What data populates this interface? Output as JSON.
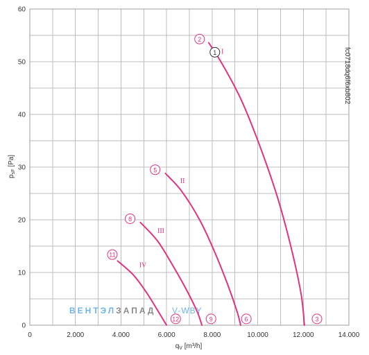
{
  "chart_data": {
    "type": "line",
    "xlabel_main": "q",
    "xlabel_sub": "V",
    "xlabel_unit": " [m³/h]",
    "ylabel_main": "p",
    "ylabel_sub": "sF",
    "ylabel_unit": " [Pa]",
    "xlim": [
      0,
      14000
    ],
    "ylim": [
      0,
      60
    ],
    "x_ticks": [
      {
        "value": 0,
        "label": "0"
      },
      {
        "value": 2000,
        "label": "2.000"
      },
      {
        "value": 4000,
        "label": "4.000"
      },
      {
        "value": 6000,
        "label": "6.000"
      },
      {
        "value": 8000,
        "label": "8.000"
      },
      {
        "value": 10000,
        "label": "10.000"
      },
      {
        "value": 12000,
        "label": "12.000"
      },
      {
        "value": 14000,
        "label": "14.000"
      }
    ],
    "y_ticks": [
      {
        "value": 0,
        "label": "0"
      },
      {
        "value": 10,
        "label": "10"
      },
      {
        "value": 20,
        "label": "20"
      },
      {
        "value": 30,
        "label": "30"
      },
      {
        "value": 40,
        "label": "40"
      },
      {
        "value": 50,
        "label": "50"
      },
      {
        "value": 60,
        "label": "60"
      }
    ],
    "x_minor_step": 1000,
    "y_minor_step": 5,
    "grid": true,
    "curve_color": "#e0337f",
    "series": [
      {
        "name": "I",
        "points": [
          [
            7850,
            53.6
          ],
          [
            8450,
            49.5
          ],
          [
            9250,
            43.0
          ],
          [
            10050,
            34.5
          ],
          [
            10850,
            24.5
          ],
          [
            11450,
            15.0
          ],
          [
            11900,
            6.0
          ],
          [
            12050,
            0
          ]
        ]
      },
      {
        "name": "II",
        "points": [
          [
            5950,
            28.8
          ],
          [
            6650,
            25.5
          ],
          [
            7450,
            20.0
          ],
          [
            8100,
            14.0
          ],
          [
            8700,
            7.5
          ],
          [
            9100,
            2.5
          ],
          [
            9250,
            0
          ]
        ]
      },
      {
        "name": "III",
        "points": [
          [
            4850,
            19.5
          ],
          [
            5600,
            16.0
          ],
          [
            6250,
            11.5
          ],
          [
            6900,
            6.5
          ],
          [
            7350,
            2.5
          ],
          [
            7550,
            0
          ]
        ]
      },
      {
        "name": "IV",
        "points": [
          [
            3850,
            12.2
          ],
          [
            4550,
            9.5
          ],
          [
            5150,
            6.0
          ],
          [
            5650,
            2.5
          ],
          [
            6000,
            0
          ]
        ]
      }
    ],
    "series_labels": [
      {
        "text": "I",
        "x": 8400,
        "y": 51.5
      },
      {
        "text": "II",
        "x": 6600,
        "y": 27.0
      },
      {
        "text": "III",
        "x": 5600,
        "y": 17.5
      },
      {
        "text": "IV",
        "x": 4800,
        "y": 11.0
      }
    ],
    "markers": [
      {
        "label": "1",
        "x": 8120,
        "y": 51.8,
        "color": "#333333"
      },
      {
        "label": "2",
        "x": 7450,
        "y": 54.3,
        "color": "#e0337f"
      },
      {
        "label": "3",
        "x": 12600,
        "y": 1.2,
        "color": "#e0337f"
      },
      {
        "label": "5",
        "x": 5500,
        "y": 29.5,
        "color": "#e0337f"
      },
      {
        "label": "6",
        "x": 9500,
        "y": 1.2,
        "color": "#e0337f"
      },
      {
        "label": "8",
        "x": 4400,
        "y": 20.2,
        "color": "#e0337f"
      },
      {
        "label": "9",
        "x": 7950,
        "y": 1.2,
        "color": "#e0337f"
      },
      {
        "label": "11",
        "x": 3620,
        "y": 13.4,
        "color": "#e0337f"
      },
      {
        "label": "12",
        "x": 6400,
        "y": 1.2,
        "color": "#e0337f"
      }
    ]
  },
  "chart_code": "fc0718dq6f6xb802",
  "watermark": {
    "part1": "ВЕНТЭЛ",
    "part1_color": "#6fb6e6",
    "part2": "ЗАПАД",
    "part2_color": "#8a8a8a",
    "part3": "V-WBY",
    "part3_color": "#6fb6e6"
  }
}
